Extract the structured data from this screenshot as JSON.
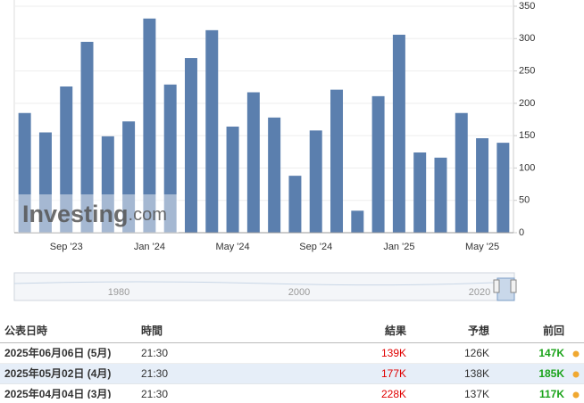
{
  "chart_data": {
    "type": "bar",
    "categories": [
      null,
      null,
      "Sep '23",
      null,
      null,
      null,
      "Jan '24",
      null,
      null,
      null,
      "May '24",
      null,
      null,
      null,
      "Sep '24",
      null,
      null,
      null,
      "Jan '25",
      null,
      null,
      null,
      "May '25",
      null
    ],
    "values": [
      185,
      155,
      226,
      295,
      149,
      172,
      331,
      229,
      270,
      313,
      164,
      217,
      178,
      88,
      158,
      221,
      34,
      211,
      306,
      124,
      116,
      185,
      146,
      139
    ],
    "color": "#5b7fae",
    "ylim": [
      0,
      350
    ],
    "yticks": [
      0,
      50,
      100,
      150,
      200,
      250,
      300,
      350
    ],
    "grid": true
  },
  "watermark": {
    "brand": "Investing",
    "suffix": ".com"
  },
  "navigator": {
    "labels": [
      "1980",
      "2000",
      "2020"
    ]
  },
  "table": {
    "headers": [
      "公表日時",
      "時間",
      "結果",
      "予想",
      "前回"
    ],
    "rows": [
      [
        "2025年06月06日 (5月)",
        "21:30",
        "139K",
        "126K",
        "147K"
      ],
      [
        "2025年05月02日 (4月)",
        "21:30",
        "177K",
        "138K",
        "185K"
      ],
      [
        "2025年04月04日 (3月)",
        "21:30",
        "228K",
        "137K",
        "117K"
      ]
    ]
  }
}
